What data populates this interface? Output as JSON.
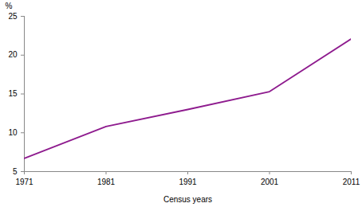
{
  "chart_data": {
    "type": "line",
    "x": [
      1971,
      1981,
      1991,
      2001,
      2011
    ],
    "series": [
      {
        "color": "#8e1b8e",
        "values": [
          6.7,
          10.8,
          13.0,
          15.3,
          22.1
        ]
      }
    ],
    "xlabel": "Census years",
    "ylabel": "%",
    "xlim": [
      1971,
      2011
    ],
    "xticks": [
      1971,
      1981,
      1991,
      2001,
      2011
    ],
    "ylim": [
      5,
      25
    ],
    "yticks": [
      5,
      10,
      15,
      20,
      25
    ],
    "grid": false
  }
}
